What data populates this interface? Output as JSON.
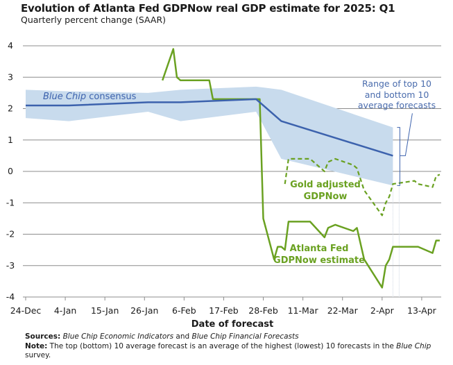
{
  "title": "Evolution of Atlanta Fed GDPNow real GDP estimate for 2025: Q1",
  "subtitle": "Quarterly percent change (SAAR)",
  "footer": {
    "sources_label": "Sources:",
    "sources_part1": "Blue Chip Economic Indicators",
    "sources_part2": " and ",
    "sources_part3": "Blue Chip Financial Forecasts",
    "note_label": "Note:",
    "note_text": " The top (bottom) 10 average forecast is an average of the highest (lowest) 10 forecasts in the ",
    "note_italic": "Blue Chip",
    "note_end": " survey."
  },
  "colors": {
    "gdpnow": "#6aa121",
    "gold": "#6aa121",
    "consensus": "#3c62ad",
    "band": "#c8dbed",
    "grid": "#8c8c8c",
    "annotation": "#4a6cad"
  },
  "chart_data": {
    "type": "line",
    "xlabel": "Date of forecast",
    "ylabel": "",
    "ylim": [
      -4,
      4
    ],
    "yticks": [
      "4",
      "3",
      "2",
      "1",
      "0",
      "-1",
      "-2",
      "-3",
      "-4"
    ],
    "ytick_values": [
      4,
      3,
      2,
      1,
      0,
      -1,
      -2,
      -3,
      -4
    ],
    "xticks": [
      "24-Dec",
      "4-Jan",
      "15-Jan",
      "26-Jan",
      "6-Feb",
      "17-Feb",
      "28-Feb",
      "11-Mar",
      "22-Mar",
      "2-Apr",
      "13-Apr"
    ],
    "xtick_dates": [
      "2024-12-24",
      "2025-01-04",
      "2025-01-15",
      "2025-01-26",
      "2025-02-06",
      "2025-02-17",
      "2025-02-28",
      "2025-03-11",
      "2025-03-22",
      "2025-04-02",
      "2025-04-13"
    ],
    "xlim": [
      "2024-12-24",
      "2025-04-19"
    ],
    "grid": true,
    "series": [
      {
        "name": "Atlanta Fed GDPNow estimate",
        "style": "solid",
        "color": "#6aa121",
        "x": [
          "2025-01-31",
          "2025-02-03",
          "2025-02-04",
          "2025-02-05",
          "2025-02-13",
          "2025-02-14",
          "2025-02-27",
          "2025-02-28",
          "2025-03-03",
          "2025-03-04",
          "2025-03-05",
          "2025-03-06",
          "2025-03-07",
          "2025-03-13",
          "2025-03-17",
          "2025-03-18",
          "2025-03-20",
          "2025-03-25",
          "2025-03-26",
          "2025-03-28",
          "2025-04-02",
          "2025-04-03",
          "2025-04-04",
          "2025-04-05",
          "2025-04-12",
          "2025-04-16",
          "2025-04-17",
          "2025-04-18"
        ],
        "y": [
          2.9,
          3.9,
          3.0,
          2.9,
          2.9,
          2.3,
          2.3,
          -1.5,
          -2.8,
          -2.4,
          -2.4,
          -2.5,
          -1.6,
          -1.6,
          -2.1,
          -1.8,
          -1.7,
          -1.9,
          -1.8,
          -2.8,
          -3.7,
          -3.0,
          -2.8,
          -2.4,
          -2.4,
          -2.6,
          -2.2,
          -2.2
        ]
      },
      {
        "name": "Gold adjusted GDPNow",
        "style": "dashed",
        "color": "#6aa121",
        "x": [
          "2025-03-06",
          "2025-03-07",
          "2025-03-13",
          "2025-03-17",
          "2025-03-18",
          "2025-03-20",
          "2025-03-25",
          "2025-03-26",
          "2025-03-28",
          "2025-04-02",
          "2025-04-03",
          "2025-04-04",
          "2025-04-05",
          "2025-04-11",
          "2025-04-12",
          "2025-04-16",
          "2025-04-17",
          "2025-04-18"
        ],
        "y": [
          -0.4,
          0.4,
          0.4,
          0.0,
          0.3,
          0.4,
          0.2,
          0.1,
          -0.6,
          -1.4,
          -1.0,
          -0.8,
          -0.4,
          -0.3,
          -0.4,
          -0.5,
          -0.15,
          -0.1
        ]
      },
      {
        "name": "Blue Chip consensus",
        "style": "solid",
        "color": "#3c62ad",
        "x": [
          "2024-12-24",
          "2025-01-05",
          "2025-01-27",
          "2025-02-05",
          "2025-02-26",
          "2025-03-05",
          "2025-04-05"
        ],
        "y": [
          2.1,
          2.1,
          2.2,
          2.2,
          2.3,
          1.6,
          0.5
        ]
      }
    ],
    "band": {
      "name": "Range of top 10 and bottom 10 average forecasts",
      "x": [
        "2024-12-24",
        "2025-01-05",
        "2025-01-27",
        "2025-02-05",
        "2025-02-26",
        "2025-03-05",
        "2025-04-05"
      ],
      "top": [
        2.6,
        2.55,
        2.5,
        2.6,
        2.7,
        2.6,
        1.4
      ],
      "bottom": [
        1.7,
        1.6,
        1.9,
        1.6,
        1.9,
        0.4,
        -0.45
      ]
    },
    "annotations": {
      "consensus_italic": "Blue Chip",
      "consensus_rest": " consensus",
      "range_lines": [
        "Range of top 10",
        "and bottom 10",
        "average forecasts"
      ],
      "gold_lines": [
        "Gold adjusted",
        "GDPNow"
      ],
      "gdpnow_lines": [
        "Atlanta Fed",
        "GDPNow estimate"
      ]
    }
  }
}
